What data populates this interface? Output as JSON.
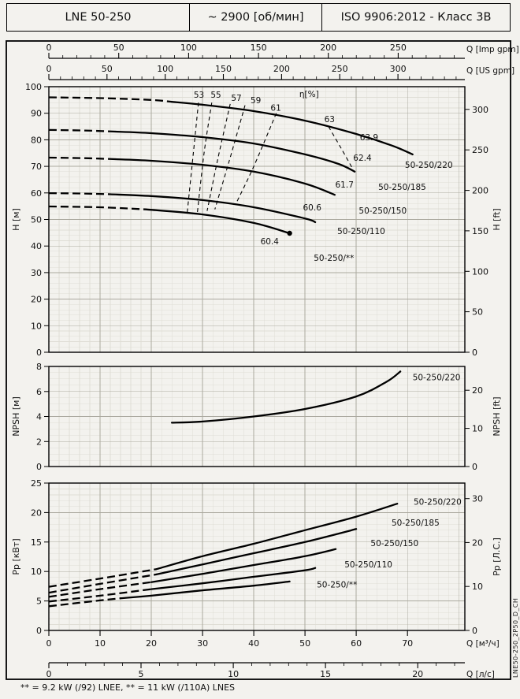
{
  "header": {
    "model": "LNE 50-250",
    "speed": "~ 2900 [об/мин]",
    "standard": "ISO 9906:2012 - Класс 3В"
  },
  "footer": {
    "note": "** = 9.2 kW (/92) LNEE, ** = 11 kW (/110A) LNES"
  },
  "side_label": "LNE50-250_2P50_D_CH",
  "top_axes": [
    {
      "label": "Q [Imp gpm]",
      "ticks": [
        0,
        50,
        100,
        150,
        200,
        250
      ],
      "minor_step": 10,
      "m3h_per_unit": 0.27277
    },
    {
      "label": "Q [US gpm]",
      "ticks": [
        0,
        50,
        100,
        150,
        200,
        250,
        300
      ],
      "minor_step": 10,
      "m3h_per_unit": 0.22712
    }
  ],
  "bottom_axes": [
    {
      "label": "Q [м³/ч]",
      "ticks": [
        0,
        10,
        20,
        30,
        40,
        50,
        60,
        70
      ],
      "m3h_per_unit": 1
    },
    {
      "label": "Q [л/с]",
      "ticks": [
        0,
        5,
        10,
        15,
        20
      ],
      "minor_step": 1,
      "m3h_per_unit": 3.6
    }
  ],
  "chart_data": [
    {
      "id": "head",
      "type": "line",
      "title": "Head curves H-Q",
      "x_unit": "м³/ч",
      "xlim": [
        0,
        81.2
      ],
      "y_left": {
        "label": "H [м]",
        "lim": [
          0,
          100
        ],
        "ticks": [
          0,
          10,
          20,
          30,
          40,
          50,
          60,
          70,
          80,
          90,
          100
        ]
      },
      "y_right": {
        "label": "H [ft]",
        "ticks": [
          0,
          50,
          100,
          150,
          200,
          250,
          300
        ],
        "left_per_unit": 0.3048
      },
      "series": [
        {
          "name": "50-250/220",
          "dashed": [
            [
              0,
              96
            ],
            [
              10,
              95.7
            ],
            [
              20,
              95
            ],
            [
              24,
              94.3
            ]
          ],
          "solid": [
            [
              24,
              94.3
            ],
            [
              30,
              93.2
            ],
            [
              40,
              90.8
            ],
            [
              50,
              87.2
            ],
            [
              60,
              82.2
            ],
            [
              67,
              77.8
            ],
            [
              71,
              74.5
            ]
          ]
        },
        {
          "name": "50-250/185",
          "dashed": [
            [
              0,
              83.7
            ],
            [
              7,
              83.5
            ],
            [
              13,
              83.1
            ]
          ],
          "solid": [
            [
              13,
              83.1
            ],
            [
              20,
              82.5
            ],
            [
              30,
              81
            ],
            [
              40,
              78.6
            ],
            [
              50,
              74.5
            ],
            [
              56.6,
              70.9
            ],
            [
              59.7,
              68
            ]
          ]
        },
        {
          "name": "50-250/150",
          "dashed": [
            [
              0,
              73.3
            ],
            [
              7,
              73.1
            ],
            [
              13,
              72.7
            ]
          ],
          "solid": [
            [
              13,
              72.7
            ],
            [
              20,
              72.1
            ],
            [
              30,
              70.6
            ],
            [
              40,
              68
            ],
            [
              50,
              63.5
            ],
            [
              55.8,
              59.3
            ]
          ]
        },
        {
          "name": "50-250/110",
          "dashed": [
            [
              0,
              59.9
            ],
            [
              6,
              59.8
            ],
            [
              12,
              59.5
            ]
          ],
          "solid": [
            [
              12,
              59.5
            ],
            [
              20,
              58.8
            ],
            [
              30,
              57.3
            ],
            [
              40,
              54.6
            ],
            [
              50,
              50.4
            ],
            [
              52,
              49
            ]
          ]
        },
        {
          "name": "50-250/**",
          "dashed": [
            [
              0,
              54.9
            ],
            [
              10,
              54.6
            ],
            [
              19,
              53.8
            ]
          ],
          "solid": [
            [
              19,
              53.8
            ],
            [
              30,
              51.9
            ],
            [
              40,
              48.7
            ],
            [
              47,
              44.8
            ]
          ],
          "end_dot": true
        }
      ],
      "contours": [
        {
          "label": "53",
          "points": [
            [
              29.2,
              94
            ],
            [
              28.2,
              75
            ],
            [
              27.0,
              52.5
            ]
          ]
        },
        {
          "label": "55",
          "points": [
            [
              31.8,
              94
            ],
            [
              30.3,
              75
            ],
            [
              29.0,
              52.8
            ]
          ]
        },
        {
          "label": "57",
          "points": [
            [
              35.4,
              93.5
            ],
            [
              33.0,
              73
            ],
            [
              30.9,
              53.2
            ]
          ]
        },
        {
          "label": "59",
          "points": [
            [
              38.3,
              93
            ],
            [
              35.2,
              72
            ],
            [
              32.4,
              53.8
            ]
          ]
        },
        {
          "label": "61",
          "points": [
            [
              44.4,
              90
            ],
            [
              40.0,
              70
            ],
            [
              36.4,
              55.5
            ]
          ]
        },
        {
          "label": "63",
          "points": [
            [
              54.6,
              85
            ],
            [
              57.0,
              77
            ],
            [
              59.2,
              69.5
            ]
          ]
        }
      ],
      "annotations": [
        {
          "text": "53",
          "q": 29.3,
          "v": 95.8,
          "anchor": "middle"
        },
        {
          "text": "55",
          "q": 32.6,
          "v": 95.8,
          "anchor": "middle"
        },
        {
          "text": "57",
          "q": 36.6,
          "v": 94.7,
          "anchor": "middle"
        },
        {
          "text": "59",
          "q": 40.4,
          "v": 93.8,
          "anchor": "middle"
        },
        {
          "text": "61",
          "q": 44.3,
          "v": 91.0,
          "anchor": "middle"
        },
        {
          "text": "η[%]",
          "q": 50.8,
          "v": 96.2,
          "anchor": "middle"
        },
        {
          "text": "63",
          "q": 54.8,
          "v": 86.6,
          "anchor": "middle"
        },
        {
          "text": "63.9",
          "q": 62.5,
          "v": 79.8,
          "anchor": "middle"
        },
        {
          "text": "62.4",
          "q": 61.2,
          "v": 72.1,
          "anchor": "middle"
        },
        {
          "text": "61.7",
          "q": 57.7,
          "v": 62.0,
          "anchor": "middle"
        },
        {
          "text": "60.6",
          "q": 51.4,
          "v": 53.4,
          "anchor": "middle"
        },
        {
          "text": "60.4",
          "q": 43.1,
          "v": 40.7,
          "anchor": "middle"
        },
        {
          "text": "50-250/220",
          "q": 69.5,
          "v": 69.5,
          "anchor": "start"
        },
        {
          "text": "50-250/185",
          "q": 64.3,
          "v": 61.2,
          "anchor": "start"
        },
        {
          "text": "50-250/150",
          "q": 60.5,
          "v": 52.2,
          "anchor": "start"
        },
        {
          "text": "50-250/110",
          "q": 56.3,
          "v": 44.5,
          "anchor": "start"
        },
        {
          "text": "50-250/**",
          "q": 51.7,
          "v": 34.4,
          "anchor": "start"
        }
      ]
    },
    {
      "id": "npsh",
      "type": "line",
      "title": "NPSH curve",
      "x_unit": "м³/ч",
      "xlim": [
        0,
        81.2
      ],
      "y_left": {
        "label": "NPSH [м]",
        "lim": [
          0,
          8
        ],
        "ticks": [
          0,
          2,
          4,
          6,
          8
        ]
      },
      "y_right": {
        "label": "NPSH [ft]",
        "ticks": [
          0,
          10,
          20
        ],
        "left_per_unit": 0.3048
      },
      "series": [
        {
          "name": "50-250/220",
          "dashed": [],
          "solid": [
            [
              24,
              3.5
            ],
            [
              30,
              3.6
            ],
            [
              40,
              4.0
            ],
            [
              50,
              4.6
            ],
            [
              60,
              5.6
            ],
            [
              66,
              6.8
            ],
            [
              68.6,
              7.6
            ]
          ]
        }
      ],
      "annotations": [
        {
          "text": "50-250/220",
          "q": 71.0,
          "v": 6.9,
          "anchor": "start"
        }
      ]
    },
    {
      "id": "power",
      "type": "line",
      "title": "Power curves P-Q",
      "x_unit": "м³/ч",
      "xlim": [
        0,
        81.2
      ],
      "y_left": {
        "label": "Pp [кВт]",
        "lim": [
          0,
          25
        ],
        "ticks": [
          0,
          5,
          10,
          15,
          20,
          25
        ]
      },
      "y_right": {
        "label": "Pp [Л.С.]",
        "ticks": [
          0,
          10,
          20,
          30
        ],
        "left_per_unit": 0.7457
      },
      "series": [
        {
          "name": "50-250/220",
          "dashed": [
            [
              0,
              7.4
            ],
            [
              10,
              8.8
            ],
            [
              21,
              10.4
            ]
          ],
          "solid": [
            [
              21,
              10.4
            ],
            [
              30,
              12.6
            ],
            [
              40,
              14.7
            ],
            [
              50,
              17
            ],
            [
              60,
              19.3
            ],
            [
              68,
              21.5
            ]
          ]
        },
        {
          "name": "50-250/185",
          "dashed": [
            [
              0,
              6.4
            ],
            [
              10,
              7.9
            ],
            [
              21,
              9.5
            ]
          ],
          "solid": [
            [
              21,
              9.5
            ],
            [
              30,
              11.2
            ],
            [
              40,
              13.1
            ],
            [
              50,
              15
            ],
            [
              60,
              17.2
            ]
          ]
        },
        {
          "name": "50-250/150",
          "dashed": [
            [
              0,
              5.7
            ],
            [
              10,
              7.0
            ],
            [
              20,
              8.2
            ]
          ],
          "solid": [
            [
              20,
              8.2
            ],
            [
              30,
              9.6
            ],
            [
              40,
              11.1
            ],
            [
              50,
              12.6
            ],
            [
              56,
              13.8
            ]
          ]
        },
        {
          "name": "50-250/110",
          "dashed": [
            [
              0,
              4.9
            ],
            [
              10,
              5.9
            ],
            [
              20,
              7.0
            ]
          ],
          "solid": [
            [
              20,
              7.0
            ],
            [
              30,
              8.0
            ],
            [
              40,
              9.1
            ],
            [
              50,
              10.2
            ],
            [
              52,
              10.6
            ]
          ]
        },
        {
          "name": "50-250/**",
          "dashed": [
            [
              0,
              4.1
            ],
            [
              10,
              5.1
            ],
            [
              14,
              5.45
            ]
          ],
          "solid": [
            [
              14,
              5.45
            ],
            [
              20,
              5.9
            ],
            [
              30,
              6.8
            ],
            [
              40,
              7.6
            ],
            [
              47,
              8.3
            ]
          ]
        }
      ],
      "annotations": [
        {
          "text": "50-250/220",
          "q": 71.2,
          "v": 21.3,
          "anchor": "start"
        },
        {
          "text": "50-250/185",
          "q": 66.9,
          "v": 17.8,
          "anchor": "start"
        },
        {
          "text": "50-250/150",
          "q": 62.8,
          "v": 14.3,
          "anchor": "start"
        },
        {
          "text": "50-250/110",
          "q": 57.7,
          "v": 10.7,
          "anchor": "start"
        },
        {
          "text": "50-250/**",
          "q": 52.3,
          "v": 7.3,
          "anchor": "start"
        }
      ]
    }
  ]
}
